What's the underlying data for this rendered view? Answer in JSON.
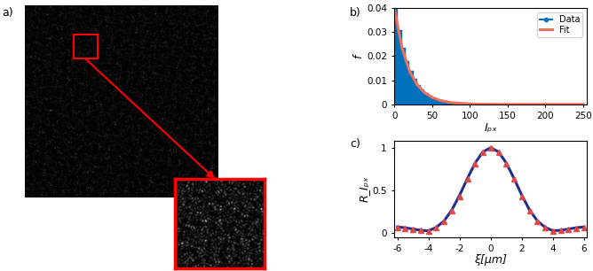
{
  "image_panel": {
    "label": "a)"
  },
  "chart_data": [
    {
      "panel_label": "b)",
      "type": "histogram",
      "x_label": "Iₚₓ",
      "y_label": "f",
      "xlim": [
        0,
        255
      ],
      "xticks": [
        0,
        50,
        100,
        150,
        200,
        250
      ],
      "ylim": [
        0,
        0.04
      ],
      "yticks": [
        0,
        0.01,
        0.02,
        0.03,
        0.04
      ],
      "legend": "upper right",
      "series": [
        {
          "name": "Data",
          "type": "histogram",
          "color": "#0072bd",
          "marker": "point",
          "bins": [
            0,
            5,
            10,
            15,
            20,
            25,
            30,
            35,
            40,
            45,
            50,
            55,
            60,
            65,
            70,
            75,
            80,
            85,
            90,
            95,
            100,
            105,
            110,
            115,
            120,
            125,
            130,
            135,
            140,
            145,
            150,
            155,
            160,
            165,
            170,
            175,
            180,
            185,
            190,
            195,
            200,
            205,
            210,
            215,
            220,
            225,
            230,
            235,
            240,
            245,
            250,
            255
          ],
          "values": [
            0.04,
            0.0307,
            0.0236,
            0.0181,
            0.0139,
            0.0107,
            0.0082,
            0.0063,
            0.0049,
            0.0037,
            0.0029,
            0.0022,
            0.0017,
            0.0013,
            0.001,
            0.0008,
            0.0006,
            0.0005,
            0.0004,
            0.0003,
            0.0002,
            0.0002,
            0.0001,
            0.0001,
            0.0001,
            0.0001,
            0.0001,
            0.0001,
            0,
            0,
            0,
            0,
            0,
            0,
            0,
            0,
            0,
            0,
            0,
            0,
            0,
            0,
            0,
            0,
            0,
            0,
            0,
            0,
            0,
            0,
            0
          ]
        },
        {
          "name": "Fit",
          "type": "line",
          "color": "#f0705a",
          "x": [
            0,
            10,
            20,
            30,
            40,
            50,
            60,
            70,
            80,
            90,
            100,
            110,
            120,
            130,
            140,
            150,
            160,
            170,
            180,
            190,
            200,
            210,
            220,
            230,
            240,
            250
          ],
          "values": [
            0.04,
            0.0236,
            0.0139,
            0.0082,
            0.0049,
            0.0029,
            0.0017,
            0.001,
            0.0006,
            0.0004,
            0.0002,
            0.0001,
            8e-05,
            5e-05,
            3e-05,
            2e-05,
            1e-05,
            0,
            0,
            0,
            0,
            0,
            0,
            0,
            0,
            0
          ]
        }
      ]
    },
    {
      "panel_label": "c)",
      "type": "line",
      "x_label": "ξ[μm]",
      "y_label": "R_Iₚₓ",
      "xlim": [
        -6.2,
        6.2
      ],
      "xticks": [
        -6,
        -4,
        -2,
        0,
        2,
        4,
        6
      ],
      "ylim": [
        -0.05,
        1.08
      ],
      "yticks": [
        0,
        0.5,
        1
      ],
      "series": [
        {
          "type": "line",
          "color": "#1f2f8f",
          "x": [
            -6,
            -5.5,
            -5,
            -4.5,
            -4,
            -3.5,
            -3,
            -2.5,
            -2,
            -1.5,
            -1,
            -0.5,
            0,
            0.5,
            1,
            1.5,
            2,
            2.5,
            3,
            3.5,
            4,
            4.5,
            5,
            5.5,
            6
          ],
          "values": [
            0.07,
            0.06,
            0.045,
            0.03,
            0.025,
            0.065,
            0.141,
            0.269,
            0.443,
            0.639,
            0.822,
            0.952,
            1.0,
            0.952,
            0.822,
            0.639,
            0.443,
            0.269,
            0.141,
            0.065,
            0.025,
            0.03,
            0.045,
            0.06,
            0.07
          ]
        },
        {
          "type": "scatter",
          "color": "#e04848",
          "marker": "triangle",
          "x": [
            -6,
            -5.5,
            -5,
            -4.5,
            -4,
            -3.5,
            -3,
            -2.5,
            -2,
            -1.5,
            -1,
            -0.5,
            0,
            0.5,
            1,
            1.5,
            2,
            2.5,
            3,
            3.5,
            4,
            4.5,
            5,
            5.5,
            6
          ],
          "values": [
            0.06,
            0.055,
            0.04,
            0.028,
            0.022,
            0.06,
            0.13,
            0.26,
            0.43,
            0.63,
            0.81,
            0.95,
            1.0,
            0.95,
            0.81,
            0.63,
            0.43,
            0.26,
            0.13,
            0.06,
            0.022,
            0.028,
            0.04,
            0.055,
            0.06
          ]
        }
      ]
    }
  ]
}
